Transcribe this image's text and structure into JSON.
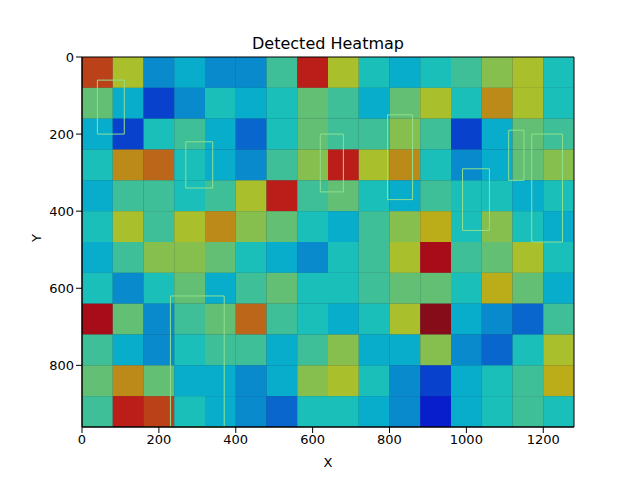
{
  "chart_data": {
    "type": "heatmap",
    "title": "Detected Heatmap",
    "x_label": "X",
    "y_label": "Y",
    "xlim": [
      0,
      1280
    ],
    "ylim": [
      960,
      0
    ],
    "xticks": [
      0,
      200,
      400,
      600,
      800,
      1000,
      1200
    ],
    "yticks": [
      0,
      200,
      400,
      600,
      800
    ],
    "cell_x": [
      0,
      80,
      160,
      240,
      320,
      400,
      480,
      560,
      640,
      720,
      800,
      880,
      960,
      1040,
      1120,
      1200,
      1280
    ],
    "cell_y": [
      0,
      80,
      160,
      240,
      320,
      400,
      480,
      560,
      640,
      720,
      800,
      880,
      960
    ],
    "cells": [
      [
        0.8,
        0.6,
        0.3,
        0.35,
        0.3,
        0.3,
        0.45,
        0.85,
        0.6,
        0.4,
        0.35,
        0.4,
        0.45,
        0.55,
        0.6,
        0.4
      ],
      [
        0.5,
        0.35,
        0.2,
        0.3,
        0.4,
        0.35,
        0.4,
        0.5,
        0.45,
        0.35,
        0.5,
        0.6,
        0.4,
        0.7,
        0.6,
        0.4
      ],
      [
        0.35,
        0.2,
        0.4,
        0.45,
        0.35,
        0.25,
        0.4,
        0.5,
        0.45,
        0.45,
        0.55,
        0.45,
        0.2,
        0.35,
        0.5,
        0.45
      ],
      [
        0.4,
        0.7,
        0.75,
        0.4,
        0.35,
        0.3,
        0.45,
        0.55,
        0.85,
        0.6,
        0.7,
        0.4,
        0.3,
        0.35,
        0.5,
        0.55
      ],
      [
        0.35,
        0.45,
        0.45,
        0.4,
        0.45,
        0.6,
        0.85,
        0.45,
        0.5,
        0.4,
        0.35,
        0.45,
        0.4,
        0.4,
        0.35,
        0.4
      ],
      [
        0.4,
        0.6,
        0.45,
        0.6,
        0.7,
        0.55,
        0.5,
        0.4,
        0.35,
        0.45,
        0.55,
        0.65,
        0.4,
        0.55,
        0.4,
        0.35
      ],
      [
        0.35,
        0.45,
        0.55,
        0.55,
        0.5,
        0.4,
        0.35,
        0.3,
        0.4,
        0.45,
        0.6,
        0.9,
        0.45,
        0.5,
        0.6,
        0.4
      ],
      [
        0.4,
        0.3,
        0.4,
        0.5,
        0.35,
        0.45,
        0.5,
        0.4,
        0.4,
        0.45,
        0.5,
        0.5,
        0.4,
        0.65,
        0.5,
        0.35
      ],
      [
        0.9,
        0.5,
        0.3,
        0.45,
        0.5,
        0.75,
        0.45,
        0.4,
        0.35,
        0.4,
        0.6,
        0.95,
        0.35,
        0.3,
        0.25,
        0.45
      ],
      [
        0.45,
        0.35,
        0.3,
        0.4,
        0.45,
        0.45,
        0.35,
        0.45,
        0.55,
        0.35,
        0.35,
        0.55,
        0.3,
        0.25,
        0.4,
        0.6
      ],
      [
        0.5,
        0.7,
        0.5,
        0.35,
        0.35,
        0.3,
        0.35,
        0.55,
        0.6,
        0.4,
        0.3,
        0.2,
        0.35,
        0.4,
        0.45,
        0.65
      ],
      [
        0.45,
        0.85,
        0.8,
        0.4,
        0.35,
        0.3,
        0.25,
        0.4,
        0.4,
        0.35,
        0.3,
        0.15,
        0.35,
        0.4,
        0.45,
        0.4
      ]
    ],
    "detections": [
      [
        40,
        60,
        110,
        200
      ],
      [
        270,
        220,
        340,
        340
      ],
      [
        620,
        200,
        680,
        350
      ],
      [
        795,
        150,
        860,
        370
      ],
      [
        990,
        290,
        1060,
        450
      ],
      [
        1170,
        200,
        1250,
        480
      ],
      [
        230,
        620,
        370,
        960
      ],
      [
        1110,
        190,
        1150,
        320
      ]
    ]
  }
}
